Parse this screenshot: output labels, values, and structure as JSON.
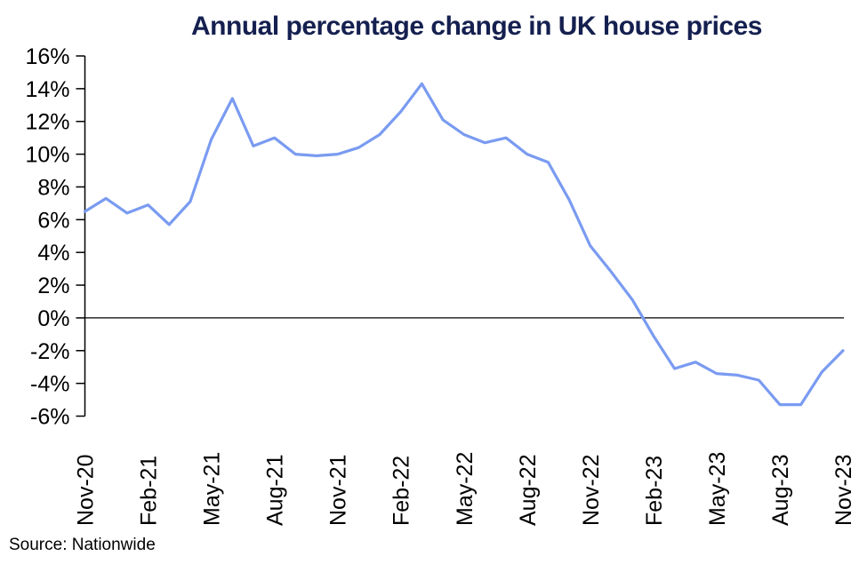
{
  "title": "Annual percentage change in UK house prices",
  "source_text": "Source: Nationwide",
  "colors": {
    "title_navy": "#152050",
    "line_blue": "#7a9bf1",
    "axis_black": "#000000",
    "label_black": "#000000",
    "background": "#ffffff"
  },
  "chart_data": {
    "type": "line",
    "title": "Annual percentage change in UK house prices",
    "xlabel": "",
    "ylabel": "",
    "unit": "%",
    "x": [
      "Nov-20",
      "Dec-20",
      "Jan-21",
      "Feb-21",
      "Mar-21",
      "Apr-21",
      "May-21",
      "Jun-21",
      "Jul-21",
      "Aug-21",
      "Sep-21",
      "Oct-21",
      "Nov-21",
      "Dec-21",
      "Jan-22",
      "Feb-22",
      "Mar-22",
      "Apr-22",
      "May-22",
      "Jun-22",
      "Jul-22",
      "Aug-22",
      "Sep-22",
      "Oct-22",
      "Nov-22",
      "Dec-22",
      "Jan-23",
      "Feb-23",
      "Mar-23",
      "Apr-23",
      "May-23",
      "Jun-23",
      "Jul-23",
      "Aug-23",
      "Sep-23",
      "Oct-23",
      "Nov-23"
    ],
    "values": [
      6.5,
      7.3,
      6.4,
      6.9,
      5.7,
      7.1,
      10.9,
      13.4,
      10.5,
      11.0,
      10.0,
      9.9,
      10.0,
      10.4,
      11.2,
      12.6,
      14.3,
      12.1,
      11.2,
      10.7,
      11.0,
      10.0,
      9.5,
      7.2,
      4.4,
      2.8,
      1.1,
      -1.1,
      -3.1,
      -2.7,
      -3.4,
      -3.5,
      -3.8,
      -5.3,
      -5.3,
      -3.3,
      -2.0
    ],
    "x_tick_labels": [
      "Nov-20",
      "Feb-21",
      "May-21",
      "Aug-21",
      "Nov-21",
      "Feb-22",
      "May-22",
      "Aug-22",
      "Nov-22",
      "Feb-23",
      "May-23",
      "Aug-23",
      "Nov-23"
    ],
    "x_tick_every_n_months": 3,
    "y_tick_labels": [
      "16%",
      "14%",
      "12%",
      "10%",
      "8%",
      "6%",
      "4%",
      "2%",
      "0%",
      "-2%",
      "-4%",
      "-6%"
    ],
    "ylim": [
      -6,
      16
    ],
    "y_tick_step": 2,
    "grid": false,
    "zero_line": true,
    "legend": "none",
    "source": "Nationwide"
  }
}
